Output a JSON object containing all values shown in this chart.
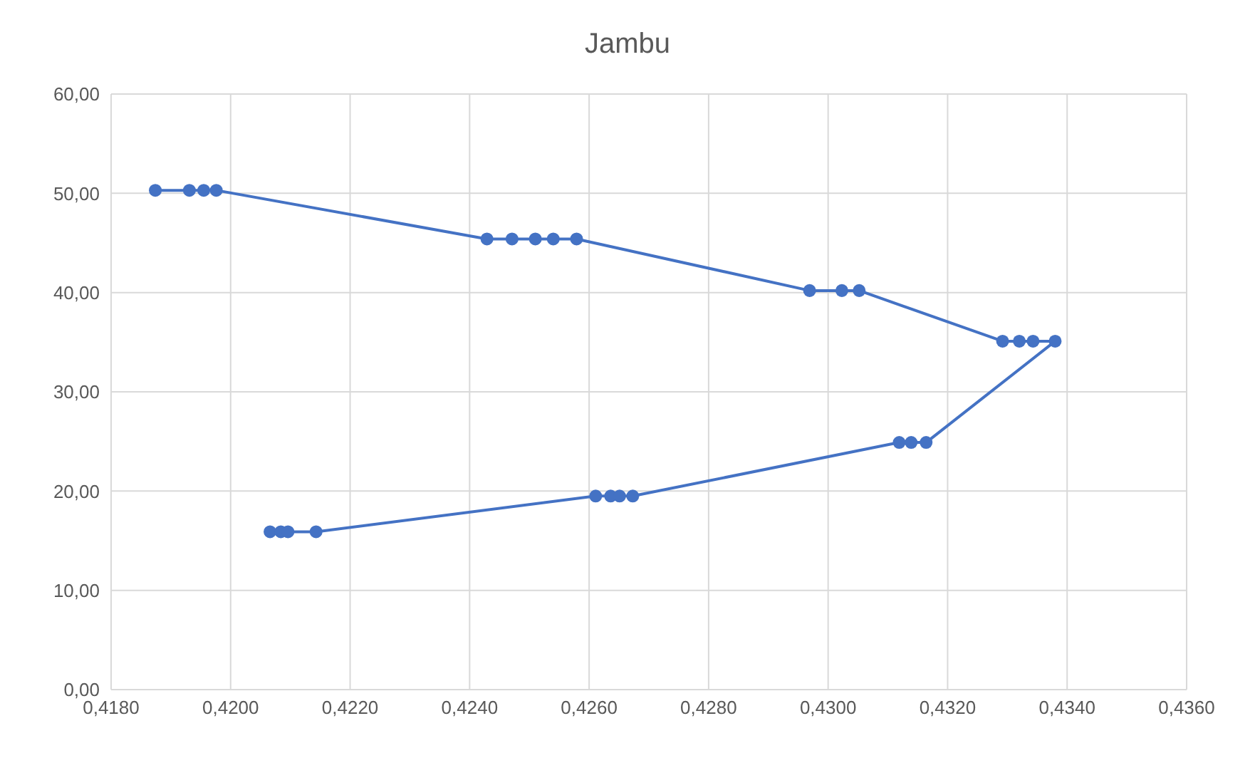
{
  "chart_data": {
    "type": "line",
    "title": "Jambu",
    "marker": "circle",
    "grid": true,
    "xlim": [
      0.418,
      0.436
    ],
    "xticks": [
      {
        "value": 0.418,
        "label": "0,4180"
      },
      {
        "value": 0.42,
        "label": "0,4200"
      },
      {
        "value": 0.422,
        "label": "0,4220"
      },
      {
        "value": 0.424,
        "label": "0,4240"
      },
      {
        "value": 0.426,
        "label": "0,4260"
      },
      {
        "value": 0.428,
        "label": "0,4280"
      },
      {
        "value": 0.43,
        "label": "0,4300"
      },
      {
        "value": 0.432,
        "label": "0,4320"
      },
      {
        "value": 0.434,
        "label": "0,4340"
      },
      {
        "value": 0.436,
        "label": "0,4360"
      }
    ],
    "ylim": [
      0,
      60
    ],
    "yticks": [
      {
        "value": 0,
        "label": "0,00"
      },
      {
        "value": 10,
        "label": "10,00"
      },
      {
        "value": 20,
        "label": "20,00"
      },
      {
        "value": 30,
        "label": "30,00"
      },
      {
        "value": 40,
        "label": "40,00"
      },
      {
        "value": 50,
        "label": "50,00"
      },
      {
        "value": 60,
        "label": "60,00"
      }
    ],
    "series": [
      {
        "color": "#4472c4",
        "x": [
          0.42066,
          0.42084,
          0.42096,
          0.42143,
          0.42611,
          0.42636,
          0.42651,
          0.42673,
          0.43119,
          0.43139,
          0.43164,
          0.4338,
          0.43343,
          0.4332,
          0.43292,
          0.43052,
          0.43023,
          0.42969,
          0.42579,
          0.4254,
          0.4251,
          0.42471,
          0.42429,
          0.41976,
          0.41955,
          0.41931,
          0.41874
        ],
        "values": [
          15.9,
          15.9,
          15.9,
          15.9,
          19.5,
          19.5,
          19.5,
          19.5,
          24.9,
          24.9,
          24.9,
          35.1,
          35.1,
          35.1,
          35.1,
          40.2,
          40.2,
          40.2,
          45.4,
          45.4,
          45.4,
          45.4,
          45.4,
          50.3,
          50.3,
          50.3,
          50.3
        ]
      }
    ]
  }
}
